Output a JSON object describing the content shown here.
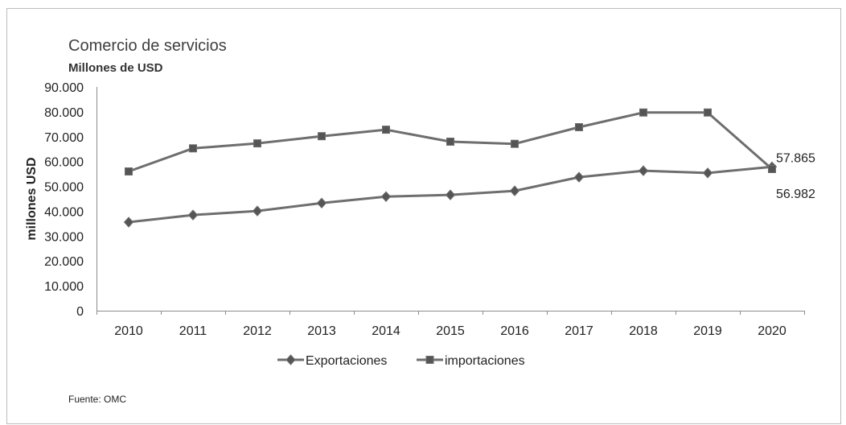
{
  "chart_data": {
    "type": "line",
    "title": "Comercio de servicios",
    "subtitle": "Millones de USD",
    "xlabel": "",
    "ylabel": "millones USD",
    "categories": [
      "2010",
      "2011",
      "2012",
      "2013",
      "2014",
      "2015",
      "2016",
      "2017",
      "2018",
      "2019",
      "2020"
    ],
    "ylim": [
      0,
      90000
    ],
    "yticks": [
      0,
      10000,
      20000,
      30000,
      40000,
      50000,
      60000,
      70000,
      80000,
      90000
    ],
    "ytick_labels": [
      "0",
      "10.000",
      "20.000",
      "30.000",
      "40.000",
      "50.000",
      "60.000",
      "70.000",
      "80.000",
      "90.000"
    ],
    "grid": false,
    "legend": "bottom",
    "series": [
      {
        "name": "Exportaciones",
        "marker": "diamond",
        "color": "#6e6e6e",
        "values": [
          35600,
          38500,
          40100,
          43300,
          45900,
          46600,
          48200,
          53700,
          56300,
          55400,
          57865
        ]
      },
      {
        "name": "importaciones",
        "marker": "square",
        "color": "#6e6e6e",
        "values": [
          56000,
          65300,
          67300,
          70200,
          72800,
          68000,
          67100,
          73800,
          79700,
          79700,
          56982
        ]
      }
    ],
    "data_labels": [
      {
        "series": 0,
        "index": 10,
        "text": "57.865"
      },
      {
        "series": 1,
        "index": 10,
        "text": "56.982"
      }
    ]
  },
  "source": "Fuente: OMC"
}
